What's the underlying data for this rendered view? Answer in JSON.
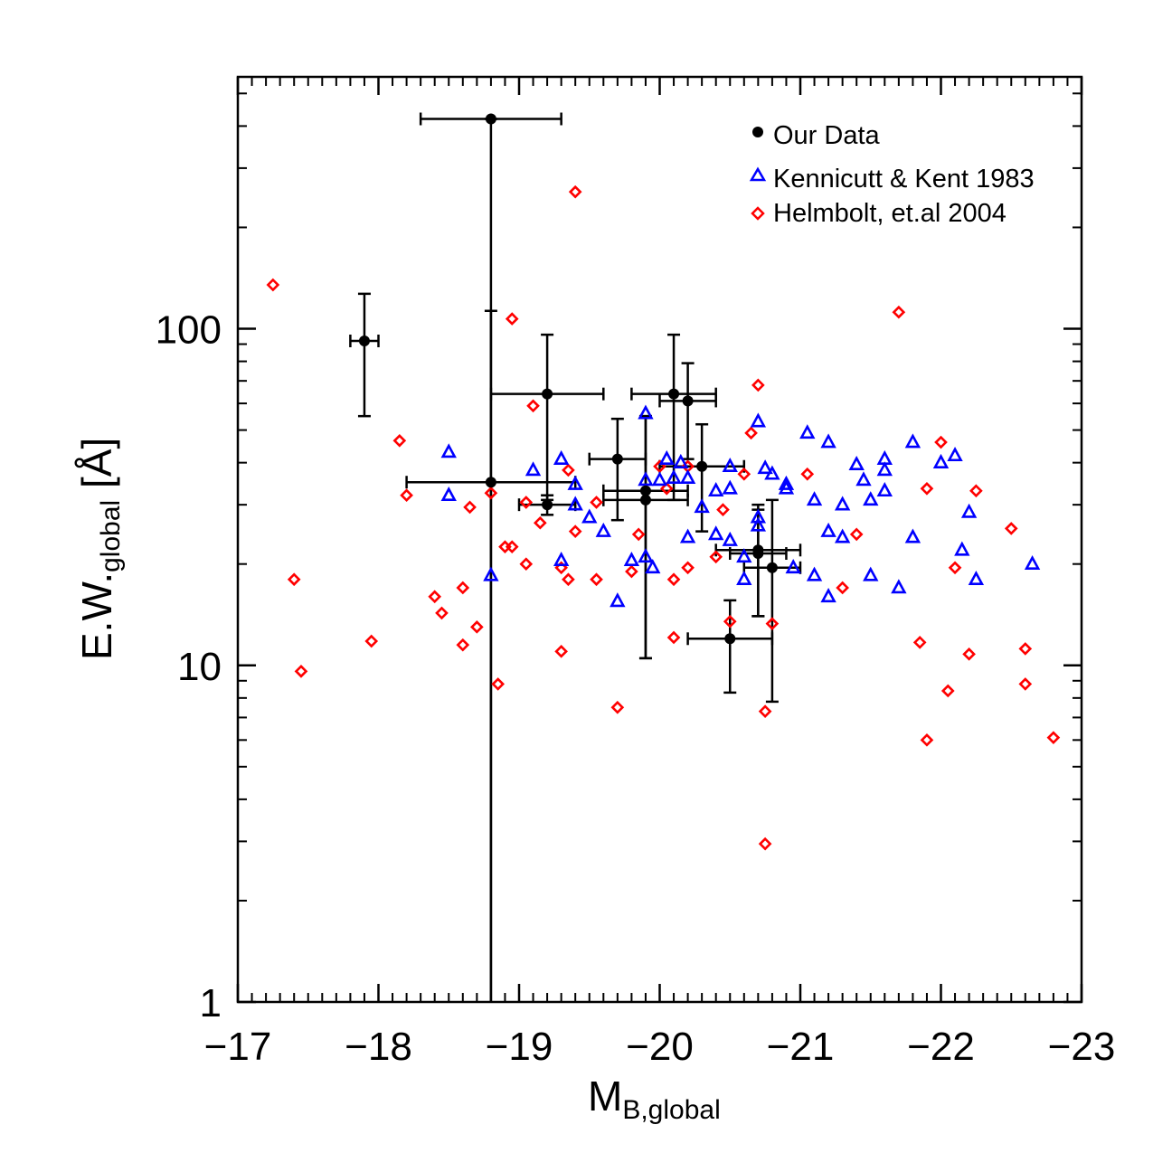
{
  "chart_data": {
    "type": "scatter",
    "xlabel": "M",
    "xlabel_sub": "B,global",
    "ylabel": "E.W.",
    "ylabel_sub": "global",
    "ylabel_unit": " [Å]",
    "xlim": [
      -17,
      -23
    ],
    "ylim": [
      1,
      560
    ],
    "yscale": "log",
    "x_ticks": [
      -17,
      -18,
      -19,
      -20,
      -21,
      -22,
      -23
    ],
    "x_tick_labels": [
      "−17",
      "−18",
      "−19",
      "−20",
      "−21",
      "−22",
      "−23"
    ],
    "y_ticks": [
      1,
      10,
      100
    ],
    "y_tick_labels": [
      "1",
      "10",
      "100"
    ],
    "legend_position": "top-right",
    "series": [
      {
        "name": "Our Data",
        "marker": "filled-circle",
        "color": "#000000",
        "points": [
          {
            "x": -18.8,
            "y": 420,
            "xerr": 0.5,
            "ylo": 0.9,
            "yhi": 420
          },
          {
            "x": -17.9,
            "y": 92,
            "xerr": 0.1,
            "ylo": 55,
            "yhi": 127
          },
          {
            "x": -18.8,
            "y": 35,
            "xerr": 0.6,
            "ylo": 1,
            "yhi": 113
          },
          {
            "x": -19.2,
            "y": 64,
            "xerr": 0.4,
            "ylo": 31,
            "yhi": 96
          },
          {
            "x": -19.2,
            "y": 30,
            "xerr": 0.2,
            "ylo": 28,
            "yhi": 32
          },
          {
            "x": -19.7,
            "y": 41,
            "xerr": 0.2,
            "ylo": 27,
            "yhi": 54
          },
          {
            "x": -19.9,
            "y": 33,
            "xerr": 0.3,
            "ylo": 10.5,
            "yhi": 55
          },
          {
            "x": -19.9,
            "y": 31,
            "xerr": 0.3,
            "ylo": 10.5,
            "yhi": 55
          },
          {
            "x": -20.1,
            "y": 64,
            "xerr": 0.3,
            "ylo": 31,
            "yhi": 96
          },
          {
            "x": -20.2,
            "y": 61,
            "xerr": 0.2,
            "ylo": 41,
            "yhi": 79
          },
          {
            "x": -20.3,
            "y": 39,
            "xerr": 0.3,
            "ylo": 25,
            "yhi": 52
          },
          {
            "x": -20.5,
            "y": 12,
            "xerr": 0.3,
            "ylo": 8.3,
            "yhi": 15.6
          },
          {
            "x": -20.7,
            "y": 22,
            "xerr": 0.3,
            "ylo": 14,
            "yhi": 30
          },
          {
            "x": -20.7,
            "y": 21.5,
            "xerr": 0.2,
            "ylo": 14,
            "yhi": 29
          },
          {
            "x": -20.8,
            "y": 19.5,
            "xerr": 0.2,
            "ylo": 7.8,
            "yhi": 31
          }
        ]
      },
      {
        "name": "Kennicutt & Kent 1983",
        "marker": "open-triangle",
        "color": "#0000ff",
        "points": [
          [
            -18.5,
            43
          ],
          [
            -18.5,
            32
          ],
          [
            -18.8,
            18.5
          ],
          [
            -19.1,
            38
          ],
          [
            -19.3,
            41
          ],
          [
            -19.3,
            20.5
          ],
          [
            -19.4,
            34.5
          ],
          [
            -19.4,
            30
          ],
          [
            -19.5,
            27.5
          ],
          [
            -19.6,
            25
          ],
          [
            -19.7,
            15.5
          ],
          [
            -19.8,
            20.5
          ],
          [
            -19.9,
            56
          ],
          [
            -19.9,
            35.5
          ],
          [
            -19.9,
            21
          ],
          [
            -19.95,
            19.5
          ],
          [
            -20.0,
            35.5
          ],
          [
            -20.05,
            41
          ],
          [
            -20.1,
            36
          ],
          [
            -20.15,
            40
          ],
          [
            -20.2,
            36
          ],
          [
            -20.2,
            24
          ],
          [
            -20.3,
            29.5
          ],
          [
            -20.4,
            24.5
          ],
          [
            -20.4,
            33
          ],
          [
            -20.5,
            39
          ],
          [
            -20.5,
            33.5
          ],
          [
            -20.5,
            23.5
          ],
          [
            -20.6,
            21
          ],
          [
            -20.6,
            18
          ],
          [
            -20.7,
            53
          ],
          [
            -20.7,
            27.5
          ],
          [
            -20.7,
            26
          ],
          [
            -20.75,
            38.5
          ],
          [
            -20.8,
            37
          ],
          [
            -20.9,
            34.5
          ],
          [
            -20.9,
            33.5
          ],
          [
            -20.95,
            19.5
          ],
          [
            -21.05,
            49
          ],
          [
            -21.1,
            31
          ],
          [
            -21.1,
            18.5
          ],
          [
            -21.2,
            46
          ],
          [
            -21.2,
            25
          ],
          [
            -21.2,
            16
          ],
          [
            -21.3,
            30
          ],
          [
            -21.3,
            24
          ],
          [
            -21.4,
            39.5
          ],
          [
            -21.45,
            35.5
          ],
          [
            -21.5,
            31
          ],
          [
            -21.5,
            18.5
          ],
          [
            -21.6,
            41
          ],
          [
            -21.6,
            38
          ],
          [
            -21.6,
            33
          ],
          [
            -21.7,
            17
          ],
          [
            -21.8,
            46
          ],
          [
            -21.8,
            24
          ],
          [
            -22.0,
            40
          ],
          [
            -22.1,
            42
          ],
          [
            -22.15,
            22
          ],
          [
            -22.2,
            28.5
          ],
          [
            -22.25,
            18
          ],
          [
            -22.65,
            20
          ]
        ]
      },
      {
        "name": "Helmbolt, et.al 2004",
        "marker": "open-diamond",
        "color": "#ff0000",
        "points": [
          [
            -17.25,
            135
          ],
          [
            -17.4,
            18
          ],
          [
            -17.45,
            9.6
          ],
          [
            -17.95,
            11.8
          ],
          [
            -18.15,
            46.5
          ],
          [
            -18.2,
            32
          ],
          [
            -18.4,
            16
          ],
          [
            -18.45,
            14.3
          ],
          [
            -18.6,
            17
          ],
          [
            -18.6,
            11.5
          ],
          [
            -18.65,
            29.5
          ],
          [
            -18.7,
            13
          ],
          [
            -18.8,
            32.5
          ],
          [
            -18.85,
            8.8
          ],
          [
            -18.9,
            22.5
          ],
          [
            -18.95,
            22.5
          ],
          [
            -18.95,
            107
          ],
          [
            -19.05,
            30.5
          ],
          [
            -19.05,
            20
          ],
          [
            -19.1,
            59
          ],
          [
            -19.15,
            26.5
          ],
          [
            -19.3,
            11
          ],
          [
            -19.3,
            19.5
          ],
          [
            -19.35,
            18
          ],
          [
            -19.35,
            38
          ],
          [
            -19.4,
            25
          ],
          [
            -19.4,
            255
          ],
          [
            -19.55,
            18
          ],
          [
            -19.55,
            30.5
          ],
          [
            -19.7,
            7.5
          ],
          [
            -19.8,
            19
          ],
          [
            -19.85,
            24.5
          ],
          [
            -20.0,
            39
          ],
          [
            -20.05,
            33.5
          ],
          [
            -20.1,
            18
          ],
          [
            -20.1,
            12.1
          ],
          [
            -20.2,
            39
          ],
          [
            -20.2,
            19.5
          ],
          [
            -20.4,
            21
          ],
          [
            -20.45,
            29
          ],
          [
            -20.5,
            13.5
          ],
          [
            -20.6,
            37
          ],
          [
            -20.65,
            49
          ],
          [
            -20.7,
            68
          ],
          [
            -20.75,
            7.3
          ],
          [
            -20.75,
            2.95
          ],
          [
            -20.8,
            13.3
          ],
          [
            -21.05,
            37
          ],
          [
            -21.3,
            17
          ],
          [
            -21.4,
            24.5
          ],
          [
            -21.7,
            112
          ],
          [
            -21.85,
            11.7
          ],
          [
            -21.9,
            33.5
          ],
          [
            -21.9,
            6
          ],
          [
            -22.0,
            46
          ],
          [
            -22.05,
            8.4
          ],
          [
            -22.1,
            19.5
          ],
          [
            -22.2,
            10.8
          ],
          [
            -22.25,
            33
          ],
          [
            -22.5,
            25.5
          ],
          [
            -22.6,
            8.8
          ],
          [
            -22.6,
            11.2
          ],
          [
            -22.8,
            6.1
          ]
        ]
      }
    ]
  }
}
